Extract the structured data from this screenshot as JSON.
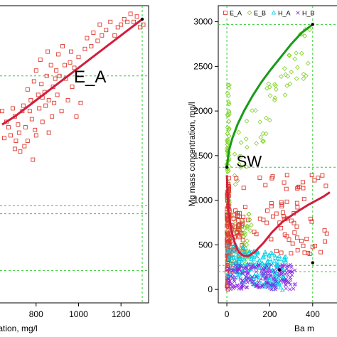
{
  "chart_data": [
    {
      "type": "scatter",
      "xlabel": "tration, mg/l",
      "ylabel": "",
      "xlim": [
        630,
        1330
      ],
      "ylim": [
        -0.05,
        1.05
      ],
      "xticks": [
        "800",
        "1000",
        "1200"
      ],
      "xtick_values": [
        800,
        1000,
        1200
      ],
      "annotation": "E_A",
      "grid_guides_x": [
        1300
      ],
      "grid_guides_y": [
        0.79,
        0.31,
        0.28,
        0.07
      ],
      "series": [
        {
          "values": [
            [
              640,
              0.66
            ],
            [
              660,
              0.62
            ],
            [
              670,
              0.6
            ],
            [
              680,
              0.57
            ],
            [
              700,
              0.64
            ],
            [
              705,
              0.55
            ],
            [
              715,
              0.61
            ],
            [
              720,
              0.58
            ],
            [
              735,
              0.66
            ],
            [
              740,
              0.68
            ],
            [
              745,
              0.53
            ],
            [
              750,
              0.6
            ],
            [
              760,
              0.74
            ],
            [
              770,
              0.66
            ],
            [
              775,
              0.7
            ],
            [
              780,
              0.63
            ],
            [
              790,
              0.77
            ],
            [
              795,
              0.59
            ],
            [
              800,
              0.81
            ],
            [
              810,
              0.72
            ],
            [
              815,
              0.67
            ],
            [
              820,
              0.85
            ],
            [
              825,
              0.76
            ],
            [
              830,
              0.62
            ],
            [
              840,
              0.73
            ],
            [
              845,
              0.68
            ],
            [
              850,
              0.79
            ],
            [
              855,
              0.88
            ],
            [
              860,
              0.7
            ],
            [
              870,
              0.83
            ],
            [
              880,
              0.75
            ],
            [
              885,
              0.69
            ],
            [
              890,
              0.78
            ],
            [
              895,
              0.81
            ],
            [
              900,
              0.72
            ],
            [
              905,
              0.87
            ],
            [
              910,
              0.79
            ],
            [
              920,
              0.66
            ],
            [
              925,
              0.9
            ],
            [
              935,
              0.83
            ],
            [
              940,
              0.78
            ],
            [
              950,
              0.7
            ],
            [
              960,
              0.84
            ],
            [
              965,
              0.88
            ],
            [
              970,
              0.75
            ],
            [
              980,
              0.82
            ],
            [
              990,
              0.64
            ],
            [
              1000,
              0.86
            ],
            [
              1010,
              0.69
            ],
            [
              1030,
              0.89
            ],
            [
              1040,
              0.93
            ],
            [
              1060,
              0.9
            ],
            [
              1070,
              0.95
            ],
            [
              1090,
              0.92
            ],
            [
              1100,
              0.98
            ],
            [
              1110,
              0.94
            ],
            [
              1130,
              0.96
            ],
            [
              1150,
              0.99
            ],
            [
              1170,
              0.94
            ],
            [
              1185,
              0.97
            ],
            [
              1200,
              0.98
            ],
            [
              1215,
              1.0
            ],
            [
              1230,
              0.99
            ],
            [
              1245,
              1.02
            ],
            [
              1260,
              0.99
            ],
            [
              1275,
              1.01
            ],
            [
              1290,
              0.97
            ],
            [
              1305,
              0.98
            ],
            [
              650,
              0.56
            ],
            [
              725,
              0.51
            ],
            [
              690,
              0.67
            ],
            [
              760,
              0.55
            ],
            [
              785,
              0.48
            ],
            [
              700,
              0.52
            ],
            [
              830,
              0.71
            ],
            [
              875,
              0.64
            ],
            [
              860,
              0.58
            ],
            [
              800,
              0.57
            ]
          ]
        }
      ],
      "trend_line": [
        [
          640,
          0.61
        ],
        [
          700,
          0.64
        ],
        [
          800,
          0.7
        ],
        [
          900,
          0.76
        ],
        [
          1000,
          0.82
        ],
        [
          1100,
          0.88
        ],
        [
          1200,
          0.94
        ],
        [
          1300,
          1.0
        ]
      ],
      "trend_end_point": [
        1300,
        1.0
      ],
      "colors": {
        "points": "#e0392f",
        "trend": "#d21e3c",
        "guides": "#33cc33",
        "endpoint": "#000000"
      }
    },
    {
      "type": "scatter",
      "title": "",
      "xlabel": "Ba m",
      "ylabel": "Mg mass concentration, mg/l",
      "xlim": [
        -40,
        520
      ],
      "ylim": [
        -150,
        3180
      ],
      "xticks": [
        "0",
        "200",
        "400"
      ],
      "xtick_values": [
        0,
        200,
        400
      ],
      "yticks": [
        "0",
        "500",
        "1000",
        "1500",
        "2000",
        "2500",
        "3000"
      ],
      "ytick_values": [
        0,
        500,
        1000,
        1500,
        2000,
        2500,
        3000
      ],
      "annotation": "SW",
      "annotation_position": [
        45,
        1375
      ],
      "legend": {
        "position": "top-left",
        "entries": [
          {
            "label": "E_A",
            "marker": "square",
            "color": "#e0392f"
          },
          {
            "label": "E_B",
            "marker": "diamond",
            "color": "#7ed321"
          },
          {
            "label": "H_A",
            "marker": "triangle",
            "color": "#00cfe8"
          },
          {
            "label": "H_B",
            "marker": "x",
            "color": "#8a2be2"
          }
        ]
      },
      "grid_guides_x": [
        0,
        400
      ],
      "grid_guides_y": [
        2970,
        1370,
        270,
        200
      ],
      "curves": [
        {
          "name": "E_B",
          "color": "#1a9a1a",
          "points": [
            [
              0,
              1370
            ],
            [
              10,
              1560
            ],
            [
              25,
              1690
            ],
            [
              50,
              1850
            ],
            [
              80,
              2000
            ],
            [
              120,
              2170
            ],
            [
              160,
              2320
            ],
            [
              200,
              2450
            ],
            [
              250,
              2600
            ],
            [
              300,
              2750
            ],
            [
              350,
              2880
            ],
            [
              400,
              2970
            ]
          ]
        },
        {
          "name": "E_A",
          "color": "#d21e3c",
          "points": [
            [
              0,
              1280
            ],
            [
              4,
              1050
            ],
            [
              8,
              880
            ],
            [
              15,
              750
            ],
            [
              25,
              620
            ],
            [
              40,
              500
            ],
            [
              55,
              420
            ],
            [
              75,
              380
            ],
            [
              100,
              375
            ],
            [
              130,
              420
            ],
            [
              170,
              520
            ],
            [
              210,
              640
            ],
            [
              260,
              760
            ],
            [
              320,
              860
            ],
            [
              380,
              950
            ],
            [
              450,
              1040
            ],
            [
              480,
              1090
            ]
          ]
        }
      ],
      "endpoints": [
        [
          0,
          1370
        ],
        [
          400,
          2970
        ],
        [
          245,
          220
        ],
        [
          400,
          300
        ]
      ],
      "point_clouds": [
        {
          "name": "E_B",
          "x_range": [
            0,
            400
          ],
          "y_band": [
            350,
            650
          ],
          "count": 180
        },
        {
          "name": "E_A",
          "x_range": [
            0,
            480
          ],
          "y_band": [
            0,
            1250
          ],
          "count": 220
        },
        {
          "name": "H_A",
          "x_range": [
            0,
            300
          ],
          "y_band": [
            120,
            520
          ],
          "count": 220
        },
        {
          "name": "H_B",
          "x_range": [
            0,
            340
          ],
          "y_band": [
            0,
            300
          ],
          "count": 200
        }
      ]
    }
  ]
}
